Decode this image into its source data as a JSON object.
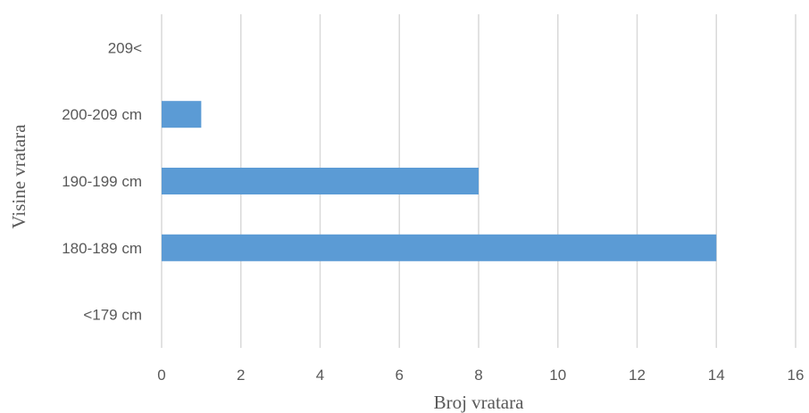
{
  "chart_data": {
    "type": "bar",
    "orientation": "horizontal",
    "categories": [
      "<179 cm",
      "180-189 cm",
      "190-199 cm",
      "200-209 cm",
      "209<"
    ],
    "values": [
      0,
      14,
      8,
      1,
      0
    ],
    "xlabel": "Broj vratara",
    "ylabel": "Visine vratara",
    "xlim": [
      0,
      16
    ],
    "xticks": [
      0,
      2,
      4,
      6,
      8,
      10,
      12,
      14,
      16
    ],
    "grid": "vertical",
    "legend": "none",
    "bar_color": "#5b9bd5",
    "grid_color": "#d9d9d9",
    "text_color": "#595959"
  }
}
